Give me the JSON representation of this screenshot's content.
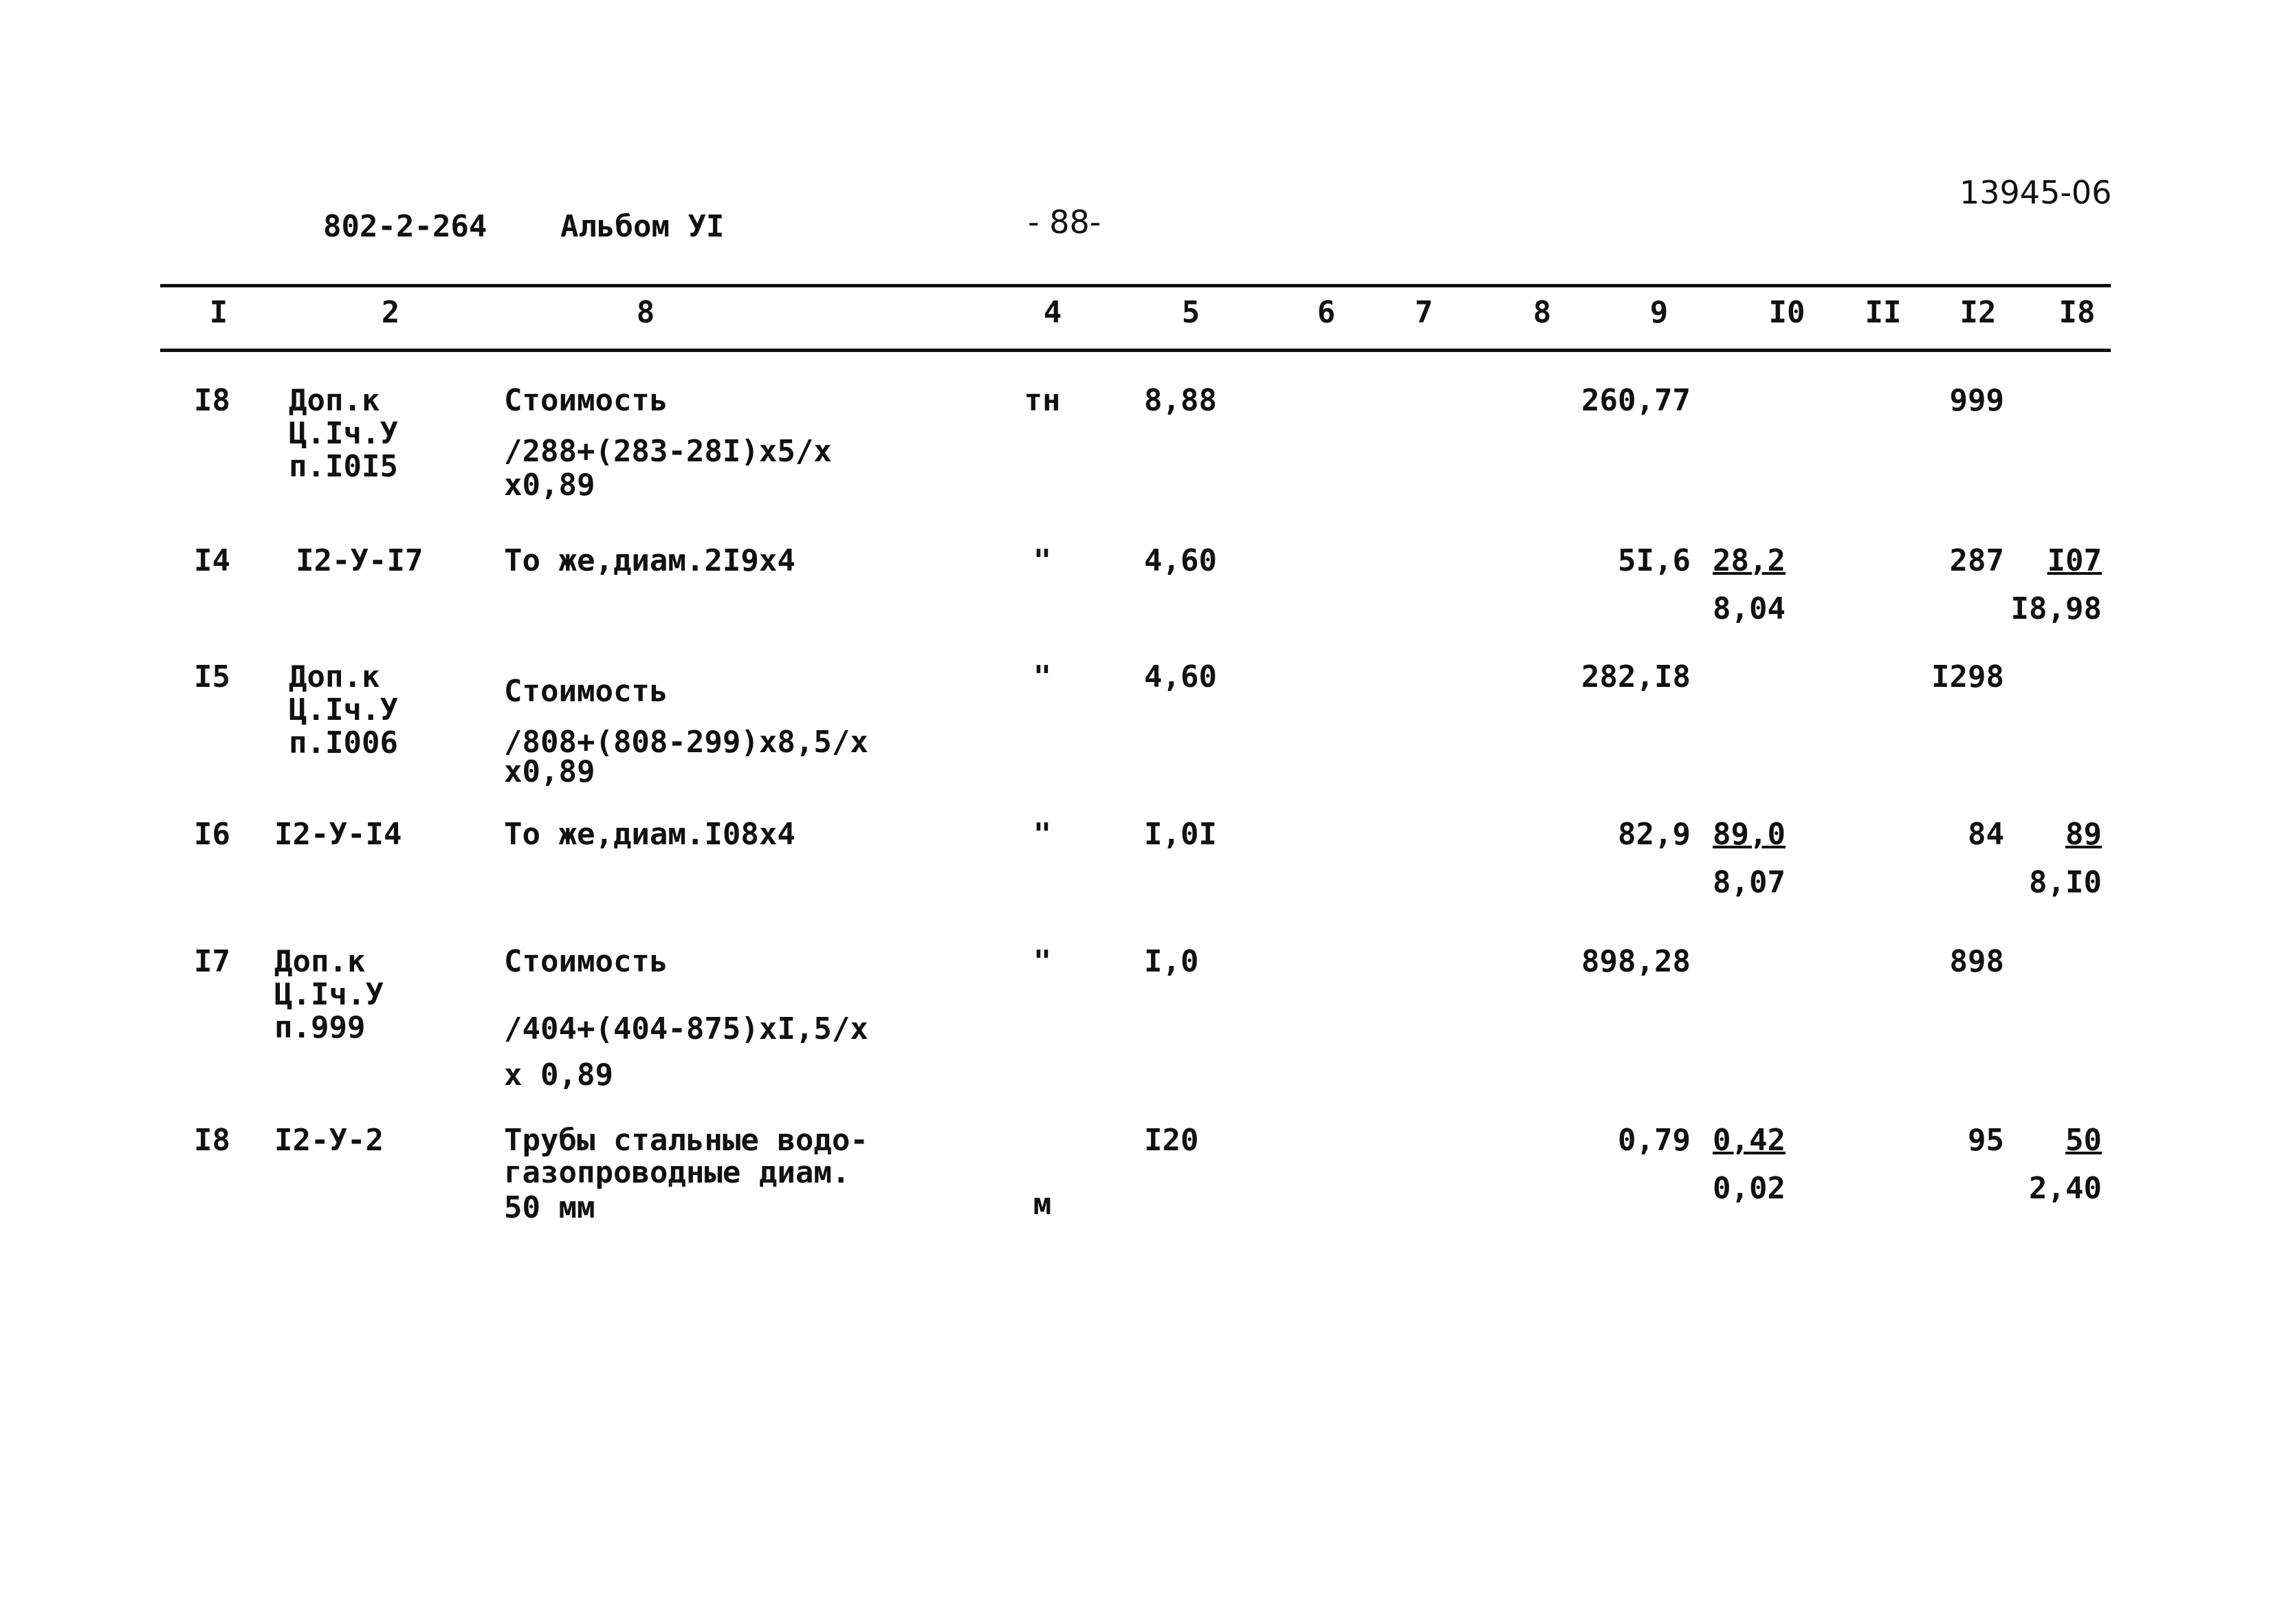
{
  "header": {
    "doc_code": "802-2-264",
    "album": "Альбом УI",
    "page": "- 88-",
    "archive_no": "13945-06"
  },
  "columns": [
    "I",
    "2",
    "8",
    "4",
    "5",
    "6",
    "7",
    "8",
    "9",
    "I0",
    "II",
    "I2",
    "I8"
  ],
  "rows": [
    {
      "no": "I8",
      "code": [
        "Доп.к",
        "Ц.Iч.У",
        "п.I0I5"
      ],
      "name": [
        "Стоимость",
        "/288+(283-28I)x5/x",
        "x0,89"
      ],
      "unit": "тн",
      "qty": "8,88",
      "c9": "260,77",
      "c10": [],
      "c12": "999",
      "c13": []
    },
    {
      "no": "I4",
      "code": [
        "I2-У-I7"
      ],
      "name": [
        "То же,диам.2I9x4"
      ],
      "unit": "\"",
      "qty": "4,60",
      "c9": "5I,6",
      "c10": [
        "28,2",
        "8,04"
      ],
      "c12": "287",
      "c13": [
        "I07",
        "I8,98"
      ]
    },
    {
      "no": "I5",
      "code": [
        "Доп.к",
        "Ц.Iч.У",
        "п.I006"
      ],
      "name": [
        "Стоимость",
        "/808+(808-299)x8,5/x",
        "x0,89"
      ],
      "unit": "\"",
      "qty": "4,60",
      "c9": "282,I8",
      "c10": [],
      "c12": "I298",
      "c13": []
    },
    {
      "no": "I6",
      "code": [
        "I2-У-I4"
      ],
      "name": [
        "То же,диам.I08x4"
      ],
      "unit": "\"",
      "qty": "I,0I",
      "c9": "82,9",
      "c10": [
        "89,0",
        "8,07"
      ],
      "c12": "84",
      "c13": [
        "89",
        "8,I0"
      ]
    },
    {
      "no": "I7",
      "code": [
        "Доп.к",
        "Ц.Iч.У",
        "п.999"
      ],
      "name": [
        "Стоимость",
        "/404+(404-875)xI,5/x",
        "x 0,89"
      ],
      "unit": "\"",
      "qty": "I,0",
      "c9": "898,28",
      "c10": [],
      "c12": "898",
      "c13": []
    },
    {
      "no": "I8",
      "code": [
        "I2-У-2"
      ],
      "name": [
        "Трубы стальные водо-",
        "газопроводные диам.",
        "50 мм"
      ],
      "unit": "м",
      "qty": "I20",
      "c9": "0,79",
      "c10": [
        "0,42",
        "0,02"
      ],
      "c12": "95",
      "c13": [
        "50",
        "2,40"
      ]
    }
  ]
}
